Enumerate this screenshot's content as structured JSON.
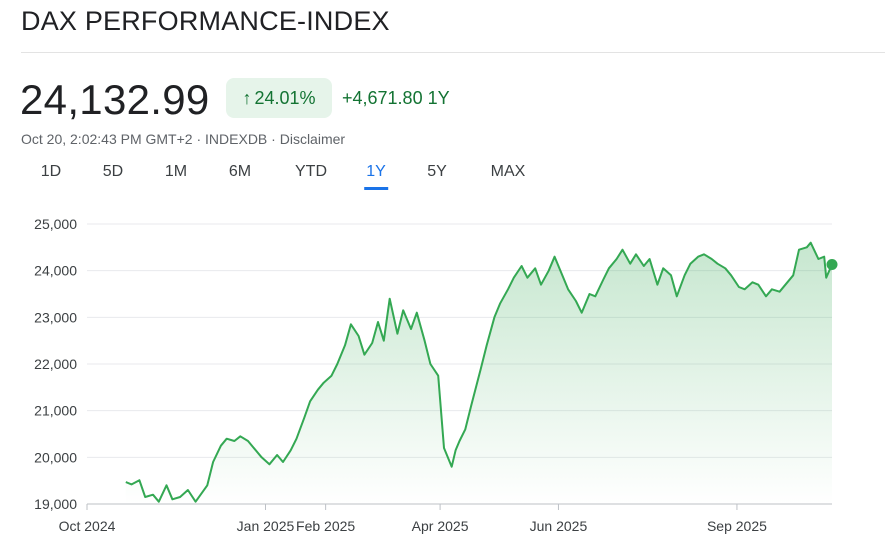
{
  "header": {
    "title": "DAX PERFORMANCE-INDEX",
    "price": "24,132.99",
    "change_percent": "24.01%",
    "change_abs": "+4,671.80",
    "change_period": "1Y",
    "timestamp": "Oct 20, 2:02:43 PM GMT+2",
    "separator": "·",
    "source": "INDEXDB",
    "disclaimer": "Disclaimer"
  },
  "colors": {
    "up_green": "#137333",
    "line_green": "#34a853",
    "pill_bg": "#e6f4ea",
    "active_tab": "#1a73e8"
  },
  "icons": {
    "change_direction": "arrow-up-icon"
  },
  "tabs": [
    {
      "label": "1D",
      "active": false
    },
    {
      "label": "5D",
      "active": false
    },
    {
      "label": "1M",
      "active": false
    },
    {
      "label": "6M",
      "active": false
    },
    {
      "label": "YTD",
      "active": false
    },
    {
      "label": "1Y",
      "active": true
    },
    {
      "label": "5Y",
      "active": false
    },
    {
      "label": "MAX",
      "active": false
    }
  ],
  "chart_data": {
    "type": "area",
    "title": "",
    "xlabel": "",
    "ylabel": "",
    "ylim": [
      19000,
      25000
    ],
    "xlim": [
      "2024-10-01",
      "2025-10-20"
    ],
    "y_ticks": [
      "25,000",
      "24,000",
      "23,000",
      "22,000",
      "21,000",
      "20,000",
      "19,000"
    ],
    "y_tick_values": [
      25000,
      24000,
      23000,
      22000,
      21000,
      20000,
      19000
    ],
    "x_ticks": [
      "Oct 2024",
      "Jan 2025",
      "Feb 2025",
      "Apr 2025",
      "Jun 2025",
      "Sep 2025"
    ],
    "x_tick_dates": [
      "2024-10-01",
      "2025-01-01",
      "2025-02-01",
      "2025-04-01",
      "2025-06-01",
      "2025-09-01"
    ],
    "grid": true,
    "legend": "none",
    "series": [
      {
        "points": [
          [
            "2024-10-21",
            19470
          ],
          [
            "2024-10-24",
            19420
          ],
          [
            "2024-10-28",
            19510
          ],
          [
            "2024-10-31",
            19150
          ],
          [
            "2024-11-04",
            19200
          ],
          [
            "2024-11-07",
            19050
          ],
          [
            "2024-11-11",
            19400
          ],
          [
            "2024-11-14",
            19100
          ],
          [
            "2024-11-18",
            19150
          ],
          [
            "2024-11-22",
            19300
          ],
          [
            "2024-11-26",
            19050
          ],
          [
            "2024-12-02",
            19400
          ],
          [
            "2024-12-05",
            19900
          ],
          [
            "2024-12-09",
            20250
          ],
          [
            "2024-12-12",
            20400
          ],
          [
            "2024-12-16",
            20350
          ],
          [
            "2024-12-19",
            20450
          ],
          [
            "2024-12-23",
            20350
          ],
          [
            "2024-12-30",
            20000
          ],
          [
            "2025-01-03",
            19850
          ],
          [
            "2025-01-07",
            20050
          ],
          [
            "2025-01-10",
            19900
          ],
          [
            "2025-01-14",
            20150
          ],
          [
            "2025-01-17",
            20400
          ],
          [
            "2025-01-21",
            20850
          ],
          [
            "2025-01-24",
            21200
          ],
          [
            "2025-01-28",
            21450
          ],
          [
            "2025-01-31",
            21600
          ],
          [
            "2025-02-04",
            21750
          ],
          [
            "2025-02-07",
            22000
          ],
          [
            "2025-02-11",
            22400
          ],
          [
            "2025-02-14",
            22850
          ],
          [
            "2025-02-18",
            22600
          ],
          [
            "2025-02-21",
            22200
          ],
          [
            "2025-02-25",
            22450
          ],
          [
            "2025-02-28",
            22900
          ],
          [
            "2025-03-03",
            22500
          ],
          [
            "2025-03-06",
            23400
          ],
          [
            "2025-03-10",
            22650
          ],
          [
            "2025-03-13",
            23150
          ],
          [
            "2025-03-17",
            22750
          ],
          [
            "2025-03-20",
            23100
          ],
          [
            "2025-03-24",
            22500
          ],
          [
            "2025-03-27",
            22000
          ],
          [
            "2025-03-31",
            21750
          ],
          [
            "2025-04-03",
            20200
          ],
          [
            "2025-04-07",
            19800
          ],
          [
            "2025-04-09",
            20150
          ],
          [
            "2025-04-11",
            20350
          ],
          [
            "2025-04-14",
            20600
          ],
          [
            "2025-04-17",
            21100
          ],
          [
            "2025-04-22",
            21900
          ],
          [
            "2025-04-25",
            22400
          ],
          [
            "2025-04-29",
            23000
          ],
          [
            "2025-05-02",
            23300
          ],
          [
            "2025-05-06",
            23600
          ],
          [
            "2025-05-09",
            23850
          ],
          [
            "2025-05-13",
            24100
          ],
          [
            "2025-05-16",
            23850
          ],
          [
            "2025-05-20",
            24050
          ],
          [
            "2025-05-23",
            23700
          ],
          [
            "2025-05-27",
            24000
          ],
          [
            "2025-05-30",
            24300
          ],
          [
            "2025-06-03",
            23900
          ],
          [
            "2025-06-06",
            23600
          ],
          [
            "2025-06-10",
            23350
          ],
          [
            "2025-06-13",
            23100
          ],
          [
            "2025-06-17",
            23500
          ],
          [
            "2025-06-20",
            23450
          ],
          [
            "2025-06-24",
            23800
          ],
          [
            "2025-06-27",
            24050
          ],
          [
            "2025-07-01",
            24250
          ],
          [
            "2025-07-04",
            24450
          ],
          [
            "2025-07-08",
            24150
          ],
          [
            "2025-07-11",
            24350
          ],
          [
            "2025-07-15",
            24100
          ],
          [
            "2025-07-18",
            24250
          ],
          [
            "2025-07-22",
            23700
          ],
          [
            "2025-07-25",
            24050
          ],
          [
            "2025-07-29",
            23900
          ],
          [
            "2025-08-01",
            23450
          ],
          [
            "2025-08-05",
            23900
          ],
          [
            "2025-08-08",
            24150
          ],
          [
            "2025-08-12",
            24300
          ],
          [
            "2025-08-15",
            24350
          ],
          [
            "2025-08-19",
            24250
          ],
          [
            "2025-08-22",
            24150
          ],
          [
            "2025-08-26",
            24050
          ],
          [
            "2025-08-29",
            23900
          ],
          [
            "2025-09-02",
            23650
          ],
          [
            "2025-09-05",
            23600
          ],
          [
            "2025-09-09",
            23750
          ],
          [
            "2025-09-12",
            23700
          ],
          [
            "2025-09-16",
            23450
          ],
          [
            "2025-09-19",
            23600
          ],
          [
            "2025-09-23",
            23550
          ],
          [
            "2025-09-26",
            23700
          ],
          [
            "2025-09-30",
            23900
          ],
          [
            "2025-10-03",
            24450
          ],
          [
            "2025-10-07",
            24500
          ],
          [
            "2025-10-09",
            24600
          ],
          [
            "2025-10-13",
            24250
          ],
          [
            "2025-10-16",
            24300
          ],
          [
            "2025-10-17",
            23850
          ],
          [
            "2025-10-20",
            24132.99
          ]
        ]
      }
    ]
  }
}
